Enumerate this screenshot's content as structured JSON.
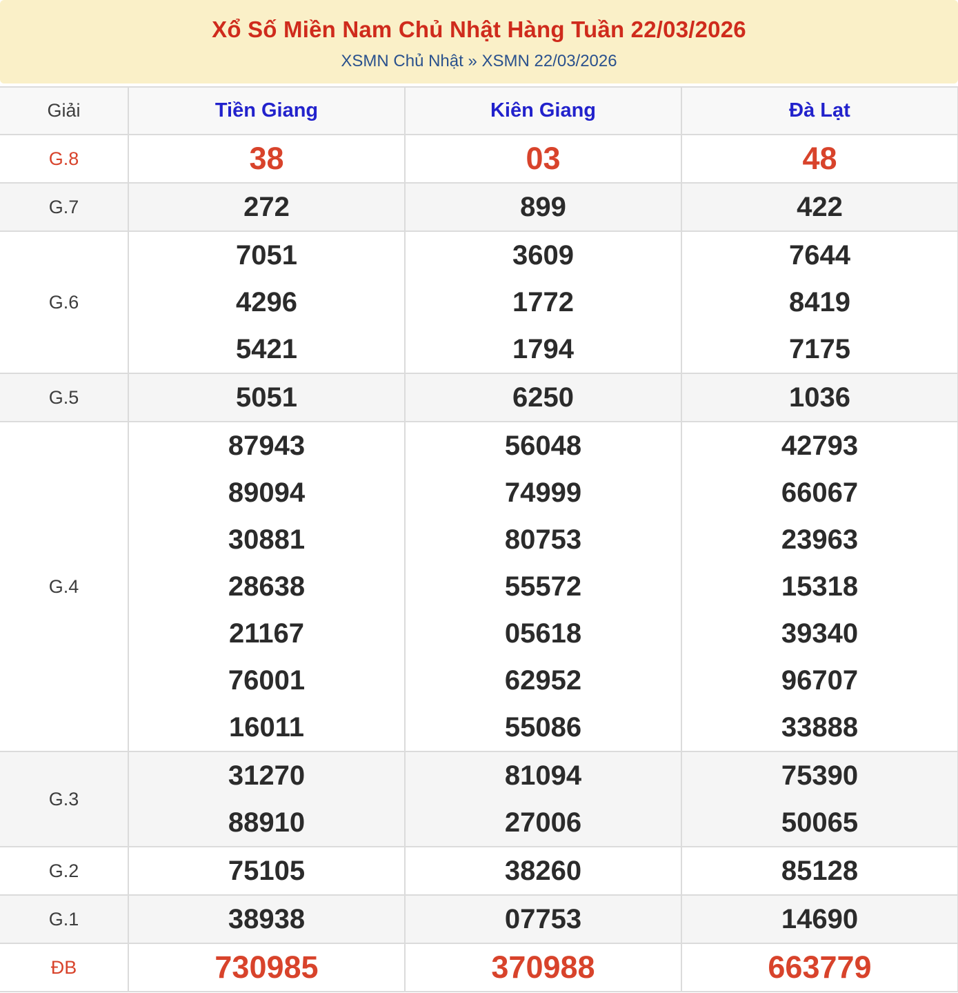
{
  "header": {
    "title": "Xổ Số Miền Nam Chủ Nhật Hàng Tuần 22/03/2026",
    "subtitle": "XSMN Chủ Nhật » XSMN 22/03/2026"
  },
  "table": {
    "prize_column_header": "Giải",
    "provinces": [
      "Tiền Giang",
      "Kiên Giang",
      "Đà Lạt"
    ],
    "rows": [
      {
        "label": "G.8",
        "highlight": true,
        "values": [
          [
            "38"
          ],
          [
            "03"
          ],
          [
            "48"
          ]
        ]
      },
      {
        "label": "G.7",
        "highlight": false,
        "values": [
          [
            "272"
          ],
          [
            "899"
          ],
          [
            "422"
          ]
        ]
      },
      {
        "label": "G.6",
        "highlight": false,
        "values": [
          [
            "7051",
            "4296",
            "5421"
          ],
          [
            "3609",
            "1772",
            "1794"
          ],
          [
            "7644",
            "8419",
            "7175"
          ]
        ]
      },
      {
        "label": "G.5",
        "highlight": false,
        "values": [
          [
            "5051"
          ],
          [
            "6250"
          ],
          [
            "1036"
          ]
        ]
      },
      {
        "label": "G.4",
        "highlight": false,
        "values": [
          [
            "87943",
            "89094",
            "30881",
            "28638",
            "21167",
            "76001",
            "16011"
          ],
          [
            "56048",
            "74999",
            "80753",
            "55572",
            "05618",
            "62952",
            "55086"
          ],
          [
            "42793",
            "66067",
            "23963",
            "15318",
            "39340",
            "96707",
            "33888"
          ]
        ]
      },
      {
        "label": "G.3",
        "highlight": false,
        "values": [
          [
            "31270",
            "88910"
          ],
          [
            "81094",
            "27006"
          ],
          [
            "75390",
            "50065"
          ]
        ]
      },
      {
        "label": "G.2",
        "highlight": false,
        "values": [
          [
            "75105"
          ],
          [
            "38260"
          ],
          [
            "85128"
          ]
        ]
      },
      {
        "label": "G.1",
        "highlight": false,
        "values": [
          [
            "38938"
          ],
          [
            "07753"
          ],
          [
            "14690"
          ]
        ]
      },
      {
        "label": "ĐB",
        "highlight": true,
        "values": [
          [
            "730985"
          ],
          [
            "370988"
          ],
          [
            "663779"
          ]
        ]
      }
    ]
  },
  "colors": {
    "banner_background": "#faf0c8",
    "title_red": "#cf2b1c",
    "subtitle_blue": "#2a518d",
    "province_blue": "#2222cc",
    "number_black": "#2b2b2b",
    "special_red": "#d8432b",
    "border_gray": "#dbdbdb",
    "alt_row_gray": "#f5f5f5"
  }
}
